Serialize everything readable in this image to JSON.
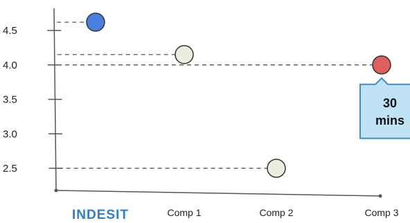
{
  "chart_data": {
    "type": "scatter",
    "categories": [
      "INDESIT",
      "Comp 1",
      "Comp 2",
      "Comp 3"
    ],
    "y_ticks": [
      "4.5",
      "4.0",
      "3.5",
      "3.0",
      "2.5"
    ],
    "points": [
      {
        "category": "INDESIT",
        "value": 4.62,
        "color": "#4a7fe0"
      },
      {
        "category": "Comp 1",
        "value": 4.15,
        "color": "#ededdf"
      },
      {
        "category": "Comp 2",
        "value": 2.5,
        "color": "#ededdf"
      },
      {
        "category": "Comp 3",
        "value": 4.0,
        "color": "#e06060"
      }
    ],
    "callout": {
      "category": "Comp 3",
      "line1": "30",
      "line2": "mins"
    },
    "grid": false,
    "ylim": [
      2.25,
      4.8
    ]
  },
  "colors": {
    "axis": "#555555",
    "dashed_line": "#444444",
    "brand": "#2a7fd4",
    "callout_fill": "#bfe2f5",
    "callout_border": "#3a8fd0"
  }
}
